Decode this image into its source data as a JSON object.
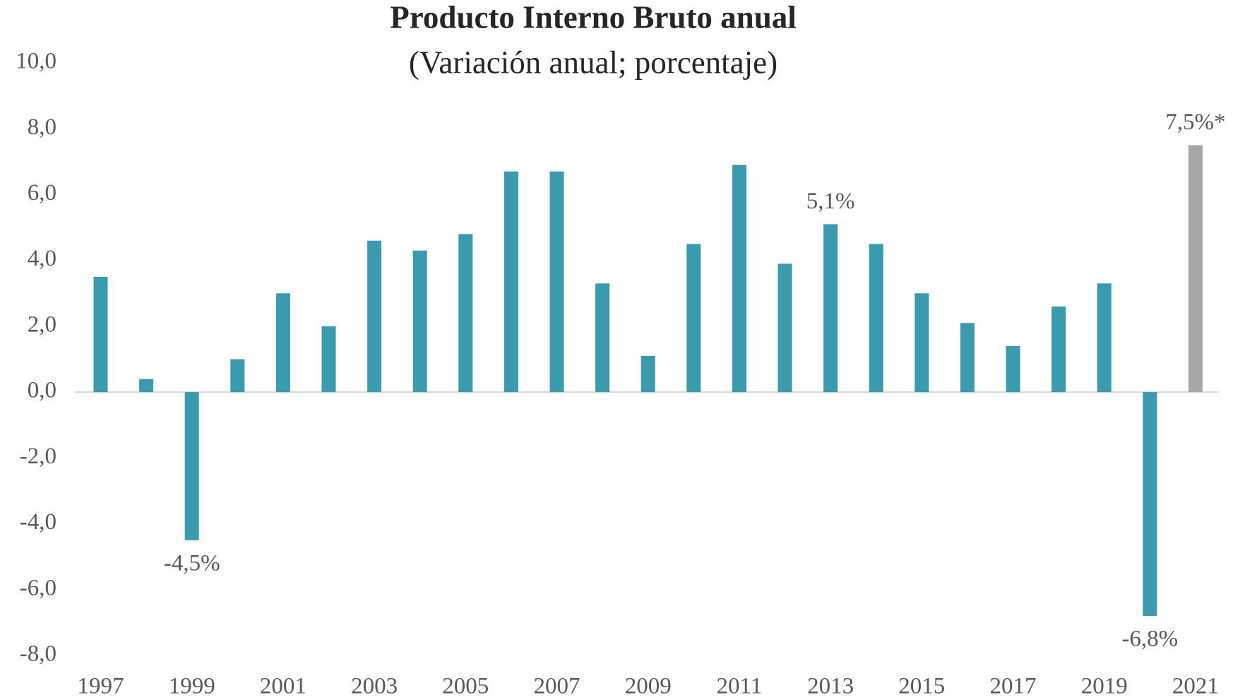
{
  "chart_data": {
    "type": "bar",
    "title": "Producto Interno Bruto anual",
    "subtitle": "(Variación anual; porcentaje)",
    "categories": [
      "1997",
      null,
      "1999",
      null,
      "2001",
      null,
      "2003",
      null,
      "2005",
      null,
      "2007",
      null,
      "2009",
      null,
      "2011",
      null,
      "2013",
      null,
      "2015",
      null,
      "2017",
      null,
      "2019",
      null,
      "2021"
    ],
    "values": [
      3.5,
      0.4,
      -4.5,
      1.0,
      3.0,
      2.0,
      4.6,
      4.3,
      4.8,
      6.7,
      6.7,
      3.3,
      1.1,
      4.5,
      6.9,
      3.9,
      5.1,
      4.5,
      3.0,
      2.1,
      1.4,
      2.6,
      3.3,
      -6.8,
      7.5
    ],
    "value_labels": [
      null,
      null,
      "-4,5%",
      null,
      null,
      null,
      null,
      null,
      null,
      null,
      null,
      null,
      null,
      null,
      null,
      null,
      "5,1%",
      null,
      null,
      null,
      null,
      null,
      null,
      "-6,8%",
      "7,5%*"
    ],
    "colors": [
      "#3a9aae",
      "#3a9aae",
      "#3a9aae",
      "#3a9aae",
      "#3a9aae",
      "#3a9aae",
      "#3a9aae",
      "#3a9aae",
      "#3a9aae",
      "#3a9aae",
      "#3a9aae",
      "#3a9aae",
      "#3a9aae",
      "#3a9aae",
      "#3a9aae",
      "#3a9aae",
      "#3a9aae",
      "#3a9aae",
      "#3a9aae",
      "#3a9aae",
      "#3a9aae",
      "#3a9aae",
      "#3a9aae",
      "#3a9aae",
      "#a6a6a6"
    ],
    "ylim": [
      -8,
      10
    ],
    "yticks": [
      {
        "value": -8,
        "label": "-8,0"
      },
      {
        "value": -6,
        "label": "-6,0"
      },
      {
        "value": -4,
        "label": "-4,0"
      },
      {
        "value": -2,
        "label": "-2,0"
      },
      {
        "value": 0,
        "label": "0,0"
      },
      {
        "value": 2,
        "label": "2,0"
      },
      {
        "value": 4,
        "label": "4,0"
      },
      {
        "value": 6,
        "label": "6,0"
      },
      {
        "value": 8,
        "label": "8,0"
      },
      {
        "value": 10,
        "label": "10,0"
      }
    ],
    "grid": false
  }
}
